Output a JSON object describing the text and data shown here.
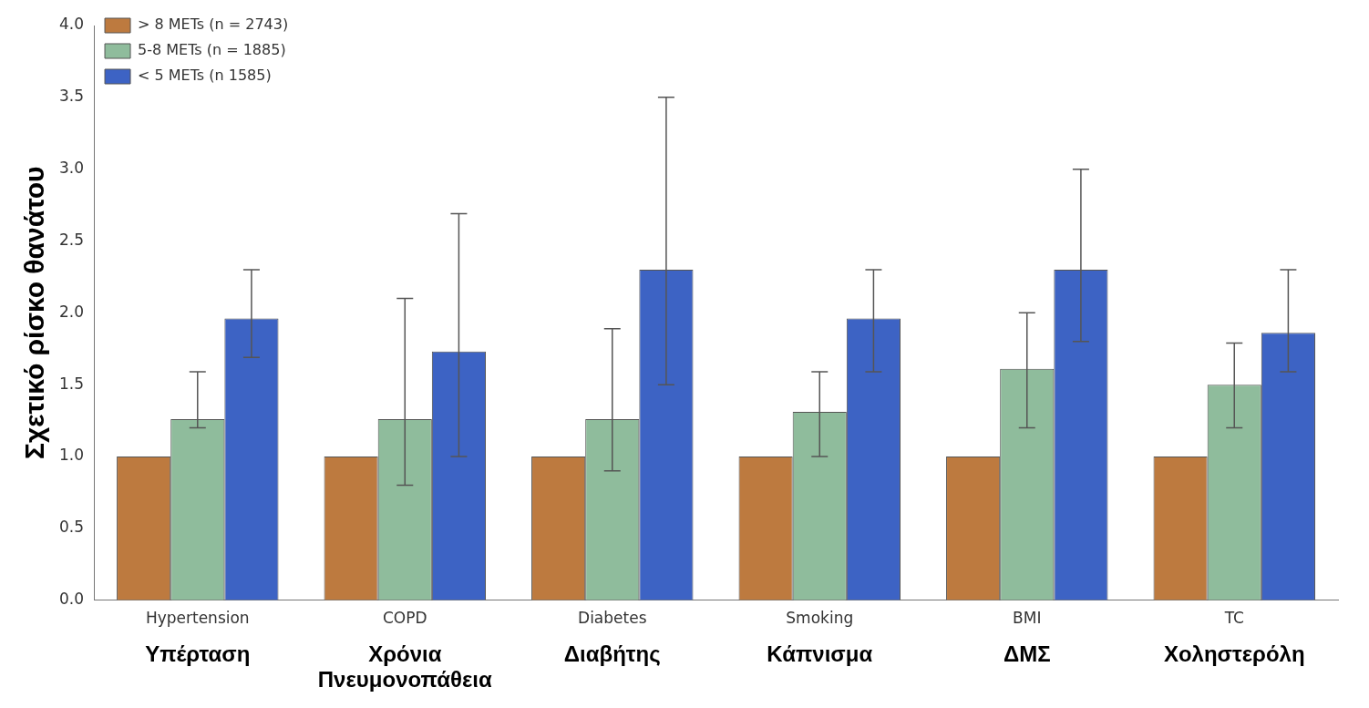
{
  "chart_data": {
    "type": "bar",
    "ylabel": "Σχετικό ρίσκο θανάτου",
    "categories": [
      "Hypertension",
      "COPD",
      "Diabetes",
      "Smoking",
      "BMI",
      "TC"
    ],
    "series": [
      {
        "name": "> 8 METs (n = 2743)",
        "color": "#bd7a3f",
        "values": [
          1.0,
          1.0,
          1.0,
          1.0,
          1.0,
          1.0
        ]
      },
      {
        "name": "5-8 METs (n = 1885)",
        "color": "#8fbc9c",
        "values": [
          1.26,
          1.26,
          1.26,
          1.31,
          1.61,
          1.5
        ],
        "errors": [
          [
            1.2,
            1.59
          ],
          [
            0.8,
            2.1
          ],
          [
            0.9,
            1.89
          ],
          [
            1.0,
            1.59
          ],
          [
            1.2,
            2.0
          ],
          [
            1.2,
            1.79
          ]
        ]
      },
      {
        "name": "< 5 METs (n 1585)",
        "color": "#3d63c4",
        "values": [
          1.96,
          1.73,
          2.3,
          1.96,
          2.3,
          1.86
        ],
        "errors": [
          [
            1.69,
            2.3
          ],
          [
            1.0,
            2.69
          ],
          [
            1.5,
            3.5
          ],
          [
            1.59,
            2.3
          ],
          [
            1.8,
            3.0
          ],
          [
            1.59,
            2.3
          ]
        ]
      }
    ],
    "ylim": [
      0,
      4
    ],
    "yticks": [
      {
        "value": 0,
        "label": "0.0"
      },
      {
        "value": 0.5,
        "label": "0.5"
      },
      {
        "value": 1,
        "label": "1.0"
      },
      {
        "value": 1.5,
        "label": "1.5"
      },
      {
        "value": 2,
        "label": "2.0"
      },
      {
        "value": 2.5,
        "label": "2.5"
      },
      {
        "value": 3,
        "label": "3.0"
      },
      {
        "value": 3.5,
        "label": "3.5"
      },
      {
        "value": 4,
        "label": "4.0"
      }
    ],
    "grid": false,
    "legend": "top left",
    "annotations": [
      "Υπέρταση",
      "Χρόνια Πνευμονοπάθεια",
      "Διαβήτης",
      "Κάπνισμα",
      "ΔΜΣ",
      "Χοληστερόλη"
    ]
  }
}
